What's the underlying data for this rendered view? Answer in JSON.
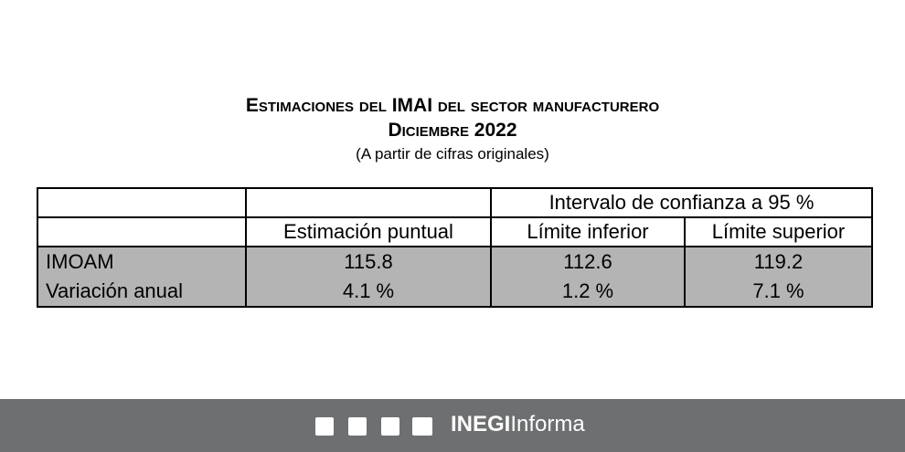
{
  "header": {
    "title": "Estimaciones del IMAI del sector manufacturero",
    "period": "Diciembre 2022",
    "subtitle": "(A partir de cifras originales)"
  },
  "table": {
    "group_header": "Intervalo de confianza a 95 %",
    "columns": [
      "Estimación puntual",
      "Límite inferior",
      "Límite superior"
    ],
    "rows": [
      [
        "IMOAM",
        "115.8",
        "112.6",
        "119.2"
      ],
      [
        "Variación anual",
        "4.1 %",
        "1.2 %",
        "7.1 %"
      ]
    ]
  },
  "footer": {
    "brand": "INEGI",
    "brand_suffix": "Informa"
  }
}
